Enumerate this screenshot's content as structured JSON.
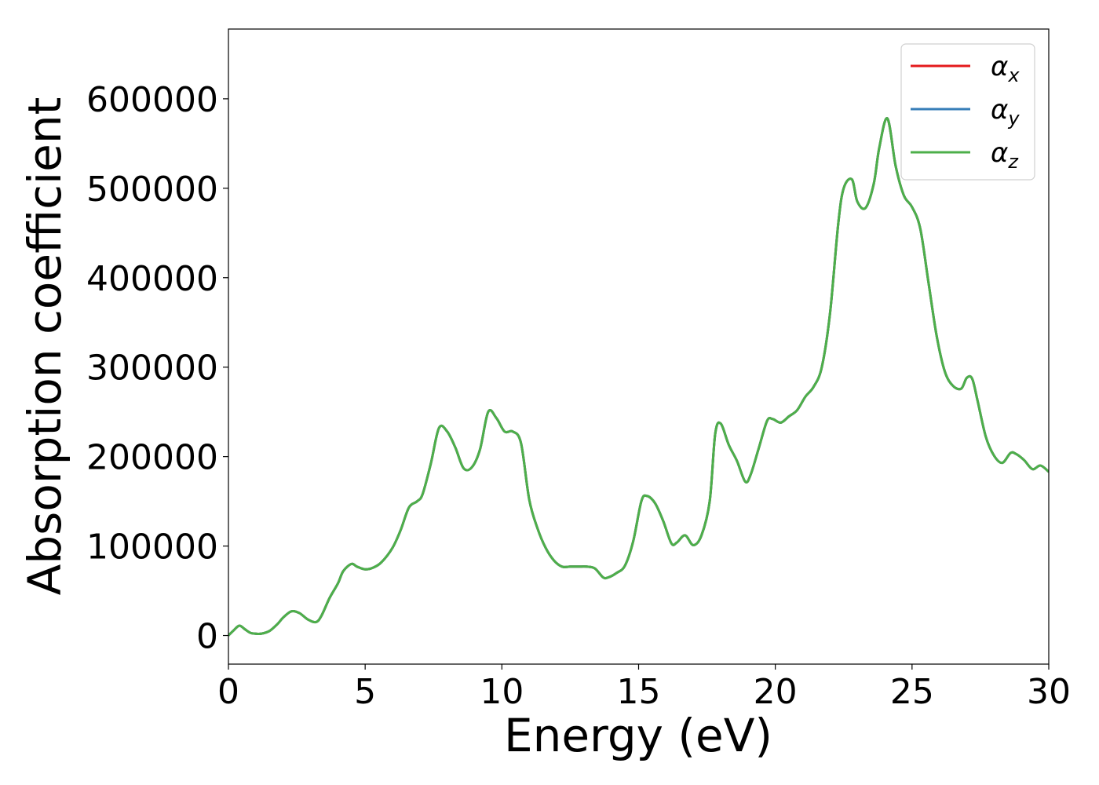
{
  "chart_data": {
    "type": "line",
    "title": "",
    "xlabel": "Energy (eV)",
    "ylabel": "Absorption coefficient",
    "xlim": [
      0,
      30
    ],
    "ylim": [
      -32000,
      678000
    ],
    "xticks": [
      0,
      5,
      10,
      15,
      20,
      25,
      30
    ],
    "xtick_labels": [
      "0",
      "5",
      "10",
      "15",
      "20",
      "25",
      "30"
    ],
    "yticks": [
      0,
      100000,
      200000,
      300000,
      400000,
      500000,
      600000
    ],
    "ytick_labels": [
      "0",
      "100000",
      "200000",
      "300000",
      "400000",
      "500000",
      "600000"
    ],
    "grid": false,
    "legend_placement": "top-right",
    "x": [
      0,
      0.2,
      0.4,
      0.6,
      0.8,
      1.0,
      1.2,
      1.5,
      1.8,
      2.0,
      2.3,
      2.6,
      2.9,
      3.2,
      3.4,
      3.7,
      4.0,
      4.2,
      4.5,
      4.7,
      5.0,
      5.3,
      5.6,
      6.0,
      6.3,
      6.6,
      6.9,
      7.1,
      7.4,
      7.7,
      8.0,
      8.3,
      8.6,
      8.9,
      9.2,
      9.5,
      9.8,
      10.1,
      10.4,
      10.7,
      11.0,
      11.3,
      11.6,
      11.9,
      12.2,
      12.5,
      12.8,
      13.1,
      13.4,
      13.7,
      13.9,
      14.2,
      14.5,
      14.8,
      15.1,
      15.3,
      15.6,
      15.9,
      16.2,
      16.4,
      16.7,
      17.0,
      17.3,
      17.6,
      17.8,
      18.0,
      18.3,
      18.6,
      18.9,
      19.1,
      19.4,
      19.7,
      19.9,
      20.2,
      20.5,
      20.8,
      21.1,
      21.4,
      21.7,
      22.0,
      22.3,
      22.5,
      22.8,
      23.0,
      23.3,
      23.6,
      23.8,
      24.1,
      24.4,
      24.7,
      25.0,
      25.3,
      25.6,
      25.9,
      26.2,
      26.5,
      26.8,
      27.0,
      27.2,
      27.4,
      27.7,
      28.0,
      28.3,
      28.6,
      28.8,
      29.1,
      29.4,
      29.7,
      30.0
    ],
    "series": [
      {
        "name": "αx",
        "symbol": "α",
        "subscript": "x",
        "color": "#e41a1c",
        "values": [
          0,
          6000,
          11000,
          7000,
          3000,
          2000,
          2000,
          5000,
          13000,
          20000,
          27000,
          25000,
          18000,
          15000,
          22000,
          42000,
          58000,
          72000,
          80000,
          77000,
          74000,
          76000,
          82000,
          98000,
          118000,
          143000,
          150000,
          158000,
          192000,
          232000,
          228000,
          210000,
          187000,
          188000,
          208000,
          250000,
          243000,
          228000,
          228000,
          215000,
          152000,
          120000,
          98000,
          84000,
          77000,
          77000,
          77000,
          77000,
          75000,
          65000,
          65000,
          70000,
          78000,
          105000,
          150000,
          156000,
          148000,
          128000,
          103000,
          104000,
          112000,
          101000,
          112000,
          150000,
          225000,
          237000,
          213000,
          195000,
          172000,
          180000,
          210000,
          240000,
          242000,
          238000,
          245000,
          252000,
          267000,
          278000,
          300000,
          360000,
          460000,
          500000,
          510000,
          485000,
          478000,
          505000,
          545000,
          578000,
          525000,
          492000,
          479000,
          455000,
          395000,
          335000,
          295000,
          279000,
          276000,
          288000,
          287000,
          262000,
          222000,
          201000,
          193000,
          204000,
          203000,
          196000,
          186000,
          190000,
          183000
        ]
      },
      {
        "name": "αy",
        "symbol": "α",
        "subscript": "y",
        "color": "#377eb8",
        "values": [
          0,
          6000,
          11000,
          7000,
          3000,
          2000,
          2000,
          5000,
          13000,
          20000,
          27000,
          25000,
          18000,
          15000,
          22000,
          42000,
          58000,
          72000,
          80000,
          77000,
          74000,
          76000,
          82000,
          98000,
          118000,
          143000,
          150000,
          158000,
          192000,
          232000,
          228000,
          210000,
          187000,
          188000,
          208000,
          250000,
          243000,
          228000,
          228000,
          215000,
          152000,
          120000,
          98000,
          84000,
          77000,
          77000,
          77000,
          77000,
          75000,
          65000,
          65000,
          70000,
          78000,
          105000,
          150000,
          156000,
          148000,
          128000,
          103000,
          104000,
          112000,
          101000,
          112000,
          150000,
          225000,
          237000,
          213000,
          195000,
          172000,
          180000,
          210000,
          240000,
          242000,
          238000,
          245000,
          252000,
          267000,
          278000,
          300000,
          360000,
          460000,
          500000,
          510000,
          485000,
          478000,
          505000,
          545000,
          578000,
          525000,
          492000,
          479000,
          455000,
          395000,
          335000,
          295000,
          279000,
          276000,
          288000,
          287000,
          262000,
          222000,
          201000,
          193000,
          204000,
          203000,
          196000,
          186000,
          190000,
          183000
        ]
      },
      {
        "name": "αz",
        "symbol": "α",
        "subscript": "z",
        "color": "#4daf4a",
        "values": [
          0,
          6000,
          11000,
          7000,
          3000,
          2000,
          2000,
          5000,
          13000,
          20000,
          27000,
          25000,
          18000,
          15000,
          22000,
          42000,
          58000,
          72000,
          80000,
          77000,
          74000,
          76000,
          82000,
          98000,
          118000,
          143000,
          150000,
          158000,
          192000,
          232000,
          228000,
          210000,
          187000,
          188000,
          208000,
          250000,
          243000,
          228000,
          228000,
          215000,
          152000,
          120000,
          98000,
          84000,
          77000,
          77000,
          77000,
          77000,
          75000,
          65000,
          65000,
          70000,
          78000,
          105000,
          150000,
          156000,
          148000,
          128000,
          103000,
          104000,
          112000,
          101000,
          112000,
          150000,
          225000,
          237000,
          213000,
          195000,
          172000,
          180000,
          210000,
          240000,
          242000,
          238000,
          245000,
          252000,
          267000,
          278000,
          300000,
          360000,
          460000,
          500000,
          510000,
          485000,
          478000,
          505000,
          545000,
          578000,
          525000,
          492000,
          479000,
          455000,
          395000,
          335000,
          295000,
          279000,
          276000,
          288000,
          287000,
          262000,
          222000,
          201000,
          193000,
          204000,
          203000,
          196000,
          186000,
          190000,
          183000
        ]
      }
    ]
  }
}
